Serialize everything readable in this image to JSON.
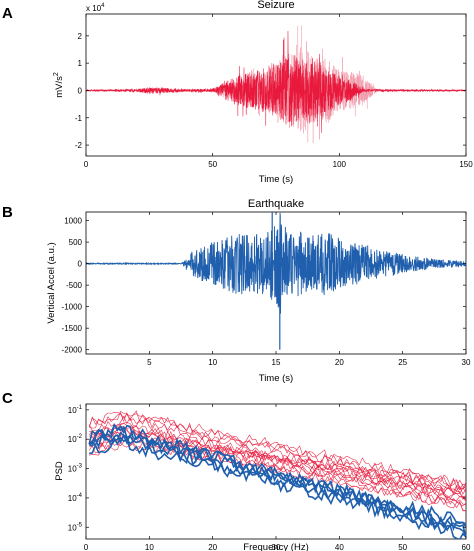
{
  "chart_data": [
    {
      "type": "line",
      "panel": "A",
      "title": "Seizure",
      "xlabel": "Time (s)",
      "ylabel": "mV/s",
      "ylabel_sup": "2",
      "y_multiplier": "x 10",
      "y_multiplier_exp": "4",
      "xlim": [
        0,
        150
      ],
      "ylim": [
        -2.4,
        2.8
      ],
      "xticks": [
        0,
        50,
        100,
        150
      ],
      "xtick_labels": [
        "0",
        "50",
        "100",
        "150"
      ],
      "yticks": [
        -2,
        -1,
        0,
        1,
        2
      ],
      "ytick_labels": [
        "-2",
        "-1",
        "0",
        "1",
        "2"
      ],
      "series": [
        {
          "color": "#e8193c",
          "envelope": [
            [
              0,
              0.03
            ],
            [
              10,
              0.04
            ],
            [
              20,
              0.06
            ],
            [
              25,
              0.14
            ],
            [
              30,
              0.12
            ],
            [
              40,
              0.05
            ],
            [
              50,
              0.08
            ],
            [
              55,
              0.35
            ],
            [
              60,
              0.7
            ],
            [
              65,
              0.75
            ],
            [
              70,
              0.9
            ],
            [
              75,
              1.0
            ],
            [
              80,
              1.6
            ],
            [
              85,
              1.2
            ],
            [
              90,
              1.5
            ],
            [
              95,
              0.9
            ],
            [
              100,
              0.6
            ],
            [
              105,
              0.4
            ],
            [
              110,
              0.05
            ],
            [
              150,
              0.03
            ]
          ]
        },
        {
          "color": "#f29aaa",
          "envelope": [
            [
              0,
              0.02
            ],
            [
              50,
              0.05
            ],
            [
              70,
              0.9
            ],
            [
              80,
              1.8
            ],
            [
              85,
              2.2
            ],
            [
              90,
              1.6
            ],
            [
              95,
              1.6
            ],
            [
              100,
              1.1
            ],
            [
              105,
              0.9
            ],
            [
              110,
              0.7
            ],
            [
              113,
              0.3
            ],
            [
              115,
              0.04
            ],
            [
              150,
              0.02
            ]
          ]
        }
      ]
    },
    {
      "type": "line",
      "panel": "B",
      "title": "Earthquake",
      "xlabel": "Time (s)",
      "ylabel": "Vertical Accel (a.u.)",
      "xlim": [
        0,
        30
      ],
      "ylim": [
        -2100,
        1200
      ],
      "xticks": [
        5,
        10,
        15,
        20,
        25,
        30
      ],
      "xtick_labels": [
        "5",
        "10",
        "15",
        "20",
        "25",
        "30"
      ],
      "yticks": [
        -2000,
        -1500,
        -1000,
        -500,
        0,
        500,
        1000
      ],
      "ytick_labels": [
        "-2000",
        "-1500",
        "-1000",
        "-500",
        "0",
        "500",
        "1000"
      ],
      "series": [
        {
          "color": "#1f5fad",
          "envelope": [
            [
              0,
              15
            ],
            [
              7.5,
              15
            ],
            [
              8,
              200
            ],
            [
              9,
              420
            ],
            [
              10,
              500
            ],
            [
              11,
              600
            ],
            [
              12,
              800
            ],
            [
              13,
              650
            ],
            [
              14,
              800
            ],
            [
              15,
              950
            ],
            [
              15.3,
              1200
            ],
            [
              16,
              800
            ],
            [
              17,
              750
            ],
            [
              18,
              650
            ],
            [
              19,
              750
            ],
            [
              20,
              600
            ],
            [
              21,
              500
            ],
            [
              22,
              450
            ],
            [
              23,
              350
            ],
            [
              24,
              280
            ],
            [
              26,
              180
            ],
            [
              28,
              100
            ],
            [
              30,
              60
            ]
          ]
        }
      ],
      "annotations": [
        {
          "x": 15.3,
          "y": -2000
        },
        {
          "x": 14.7,
          "y": 1200
        }
      ]
    },
    {
      "type": "line",
      "panel": "C",
      "title": "",
      "xlabel": "Frequency (Hz)",
      "ylabel": "PSD",
      "log_y": true,
      "xlim": [
        0,
        60
      ],
      "ylim": [
        -5.4,
        -0.8
      ],
      "xticks": [
        0,
        10,
        20,
        30,
        40,
        50,
        60
      ],
      "xtick_labels": [
        "0",
        "10",
        "20",
        "30",
        "40",
        "50",
        "60"
      ],
      "yticks": [
        -5,
        -4,
        -3,
        -2,
        -1
      ],
      "ytick_labels_base": "10",
      "ytick_labels_exp": [
        "-5",
        "-4",
        "-3",
        "-2",
        "-1"
      ],
      "series_groups": [
        {
          "color": "#e8193c",
          "count": 14,
          "start_log": [
            -1.5,
            -2.5
          ],
          "end_log": [
            -4.8,
            -3.4
          ],
          "peak_hz": 6
        },
        {
          "color": "#1f5fad",
          "count": 5,
          "start_log": [
            -2.5,
            -2.0
          ],
          "end_log": [
            -5.3,
            -4.7
          ],
          "peak_hz": 5
        }
      ]
    }
  ],
  "panel_letters": [
    "A",
    "B",
    "C"
  ]
}
